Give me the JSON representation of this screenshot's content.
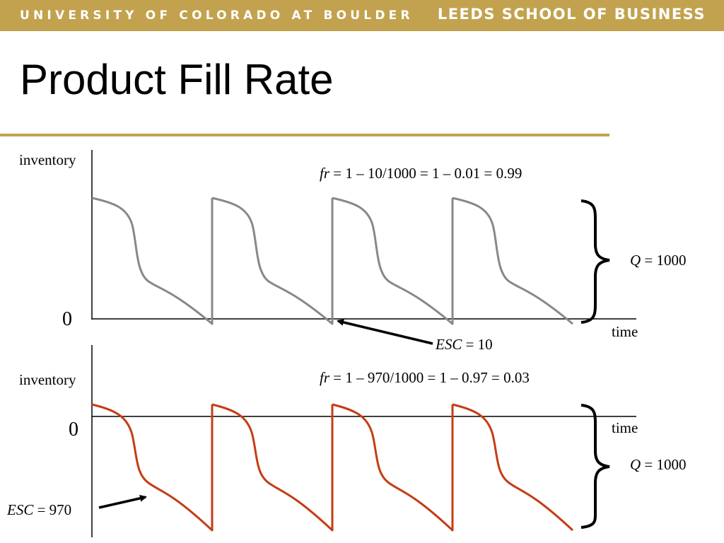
{
  "header": {
    "university": "UNIVERSITY OF COLORADO AT BOULDER",
    "school": "LEEDS SCHOOL OF BUSINESS"
  },
  "title": "Product Fill Rate",
  "colors": {
    "accent": "#c2a24e",
    "curve_top": "#888888",
    "curve_bottom": "#c43d14"
  },
  "top": {
    "ylabel": "inventory",
    "xlabel": "time",
    "zero": "0",
    "formula_var": "fr",
    "formula_rest": " = 1 – 10/1000 = 1 – 0.01 = 0.99",
    "q_var": "Q",
    "q_rest": " = 1000",
    "esc_var": "ESC",
    "esc_rest": " = 10"
  },
  "bottom": {
    "ylabel": "inventory",
    "xlabel": "time",
    "zero": "0",
    "formula_var": "fr",
    "formula_rest": " = 1 – 970/1000 = 1 – 0.97 = 0.03",
    "q_var": "Q",
    "q_rest": " = 1000",
    "esc_var": "ESC",
    "esc_rest": " = 970"
  }
}
